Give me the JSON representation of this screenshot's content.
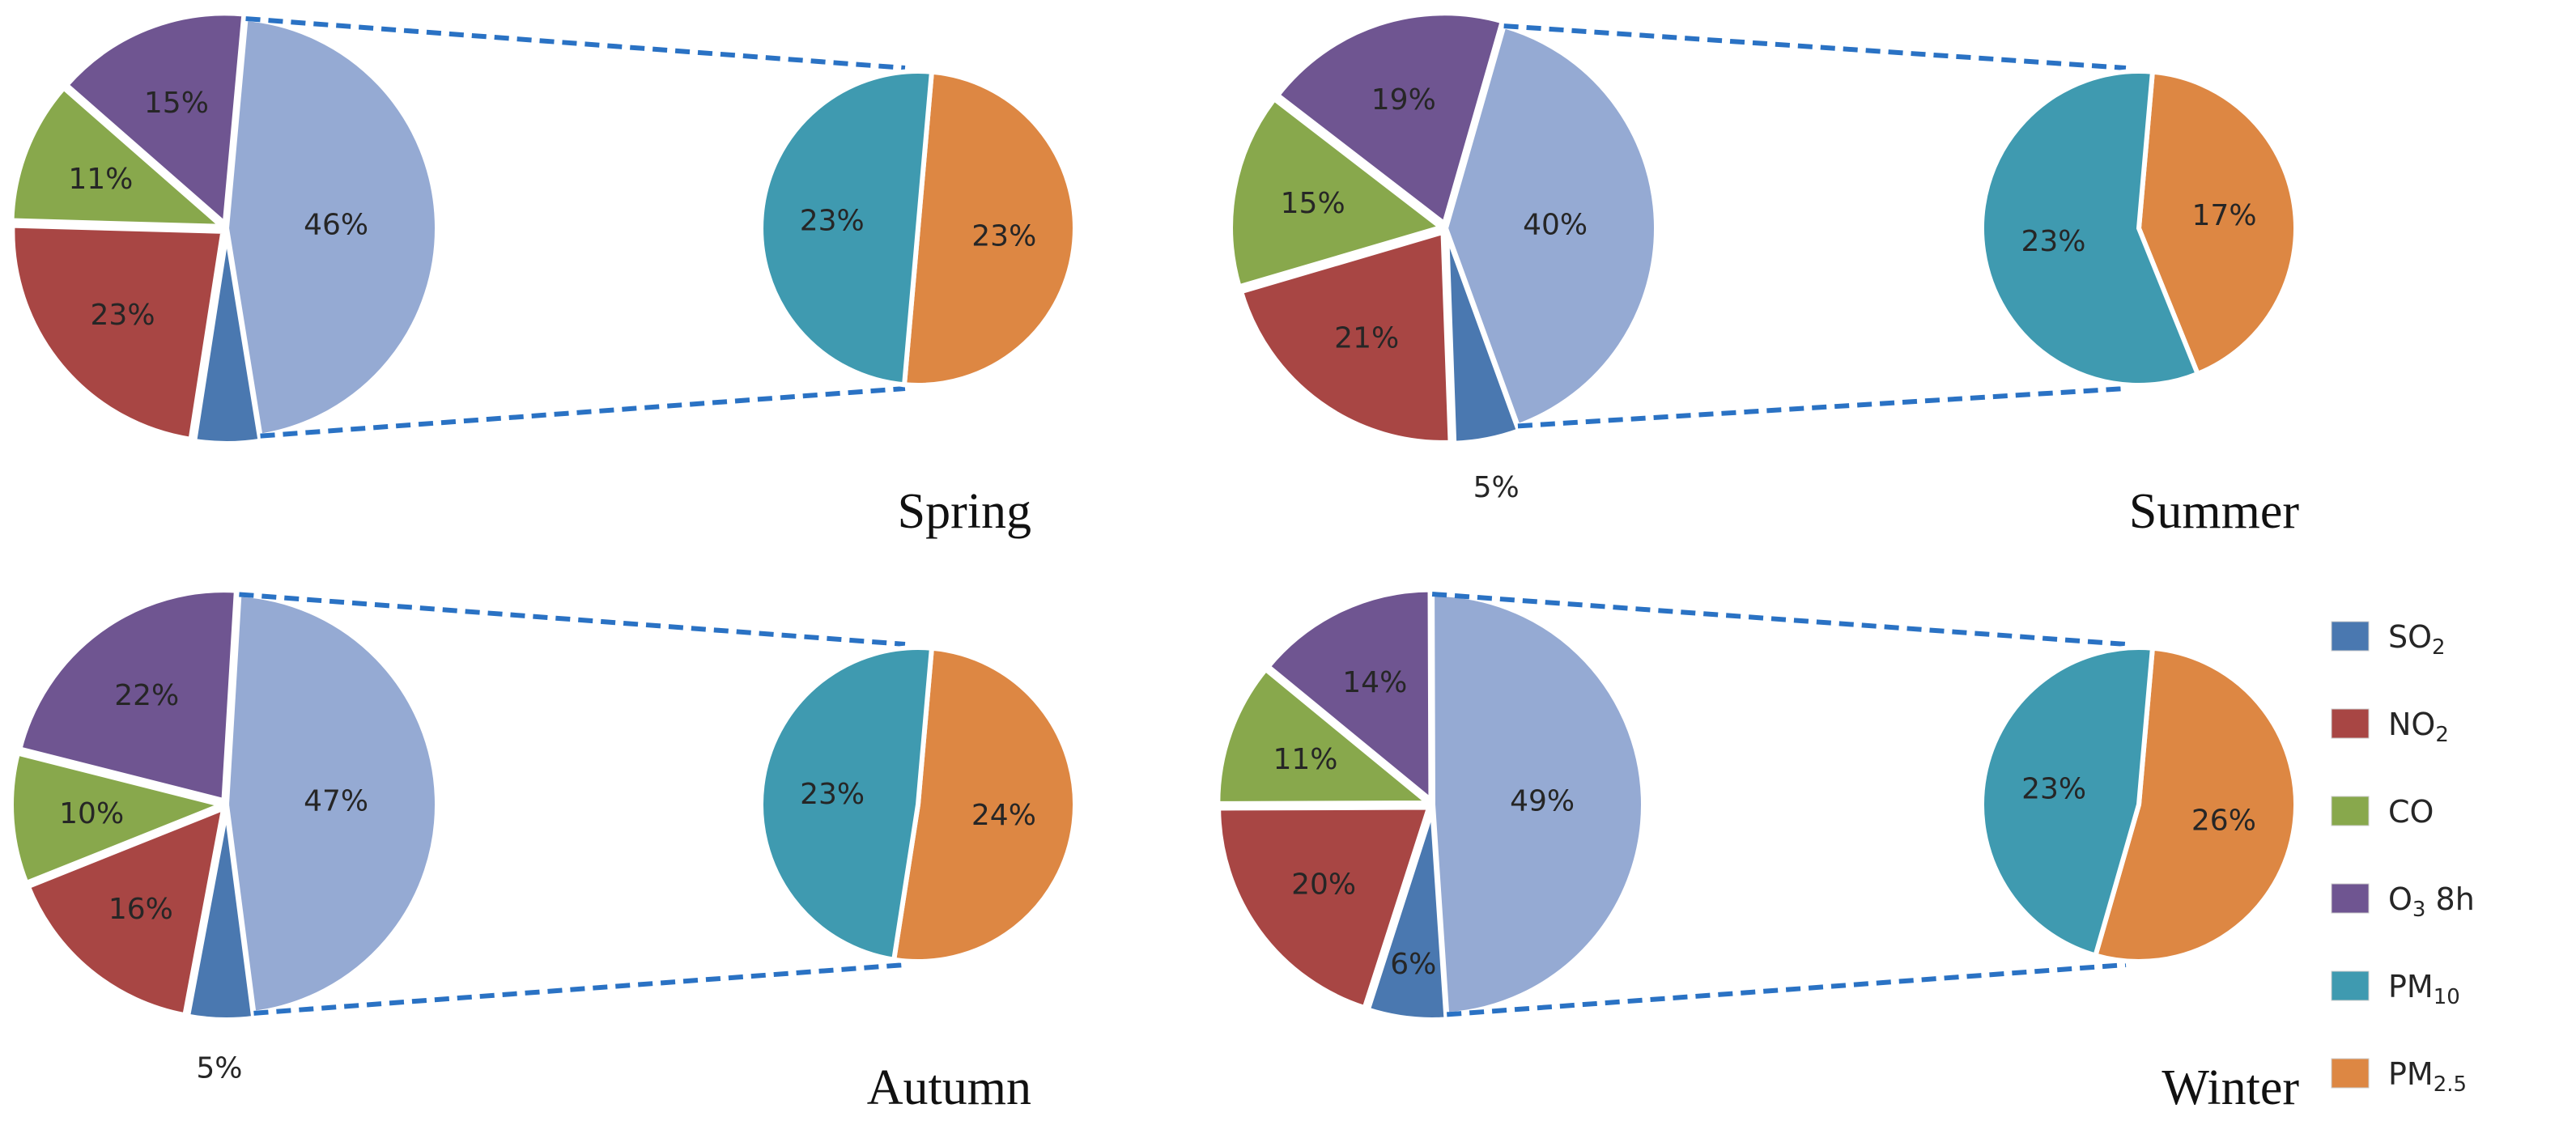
{
  "chart_data": [
    {
      "type": "pie",
      "title": "Spring",
      "main_pie": [
        {
          "category": "PM2.5 + PM10",
          "value": 46,
          "label": "46%"
        },
        {
          "category": "SO2",
          "value": 5,
          "label": ""
        },
        {
          "category": "NO2",
          "value": 23,
          "label": "23%"
        },
        {
          "category": "CO",
          "value": 11,
          "label": "11%"
        },
        {
          "category": "O3 8h",
          "value": 15,
          "label": "15%"
        }
      ],
      "secondary_pie": [
        {
          "category": "PM2.5",
          "value": 23,
          "label": "23%"
        },
        {
          "category": "PM10",
          "value": 23,
          "label": "23%"
        }
      ]
    },
    {
      "type": "pie",
      "title": "Summer",
      "main_pie": [
        {
          "category": "PM2.5 + PM10",
          "value": 40,
          "label": "40%"
        },
        {
          "category": "SO2",
          "value": 5,
          "label": "5%"
        },
        {
          "category": "NO2",
          "value": 21,
          "label": "21%"
        },
        {
          "category": "CO",
          "value": 15,
          "label": "15%"
        },
        {
          "category": "O3 8h",
          "value": 19,
          "label": "19%"
        }
      ],
      "secondary_pie": [
        {
          "category": "PM2.5",
          "value": 17,
          "label": "17%"
        },
        {
          "category": "PM10",
          "value": 23,
          "label": "23%"
        }
      ]
    },
    {
      "type": "pie",
      "title": "Autumn",
      "main_pie": [
        {
          "category": "PM2.5 + PM10",
          "value": 47,
          "label": "47%"
        },
        {
          "category": "SO2",
          "value": 5,
          "label": "5%"
        },
        {
          "category": "NO2",
          "value": 16,
          "label": "16%"
        },
        {
          "category": "CO",
          "value": 10,
          "label": "10%"
        },
        {
          "category": "O3 8h",
          "value": 22,
          "label": "22%"
        }
      ],
      "secondary_pie": [
        {
          "category": "PM2.5",
          "value": 24,
          "label": "24%"
        },
        {
          "category": "PM10",
          "value": 23,
          "label": "23%"
        }
      ]
    },
    {
      "type": "pie",
      "title": "Winter",
      "main_pie": [
        {
          "category": "PM2.5 + PM10",
          "value": 49,
          "label": "49%"
        },
        {
          "category": "SO2",
          "value": 6,
          "label": "6%"
        },
        {
          "category": "NO2",
          "value": 20,
          "label": "20%"
        },
        {
          "category": "CO",
          "value": 11,
          "label": "11%"
        },
        {
          "category": "O3 8h",
          "value": 14,
          "label": "14%"
        }
      ],
      "secondary_pie": [
        {
          "category": "PM2.5",
          "value": 26,
          "label": "26%"
        },
        {
          "category": "PM10",
          "value": 23,
          "label": "23%"
        }
      ]
    }
  ],
  "legend": {
    "placement": "right",
    "items": [
      {
        "base": "SO",
        "sub": "2",
        "suffix": "",
        "key": "SO2"
      },
      {
        "base": "NO",
        "sub": "2",
        "suffix": "",
        "key": "NO2"
      },
      {
        "base": "CO",
        "sub": "",
        "suffix": "",
        "key": "CO"
      },
      {
        "base": "O",
        "sub": "3",
        "suffix": " 8h",
        "key": "O3 8h"
      },
      {
        "base": "PM",
        "sub": "10",
        "suffix": "",
        "key": "PM10"
      },
      {
        "base": "PM",
        "sub": "2.5",
        "suffix": "",
        "key": "PM2.5"
      }
    ]
  },
  "colors": {
    "SO2": "#4a78b0",
    "NO2": "#a84644",
    "CO": "#88a84c",
    "O3 8h": "#6f5591",
    "PM2.5 + PM10": "#95aad3",
    "PM10": "#3f9ab0",
    "PM2.5": "#dd8743",
    "connector": "#2a72c4"
  }
}
